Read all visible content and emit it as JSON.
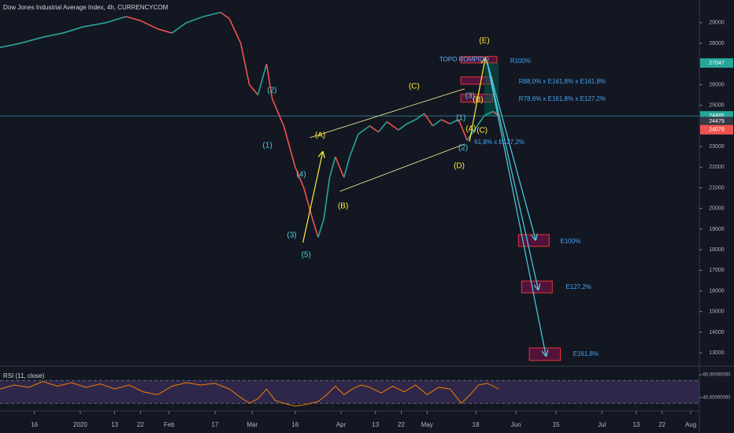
{
  "chart_data": {
    "type": "line",
    "title": "Dow Jones Industrial Average Index, 4h, CURRENCYCOM",
    "xlim": [
      -27,
      217
    ],
    "ylim": [
      12360,
      30100
    ],
    "yticks": [
      29000,
      28000,
      26000,
      25000,
      23000,
      22000,
      21000,
      20000,
      19000,
      18000,
      17000,
      16000,
      15000,
      14000,
      13000
    ],
    "xticks": [
      {
        "value": -15,
        "label": "16"
      },
      {
        "value": 1,
        "label": "2020"
      },
      {
        "value": 13,
        "label": "13"
      },
      {
        "value": 22,
        "label": "22"
      },
      {
        "value": 32,
        "label": "Feb"
      },
      {
        "value": 48,
        "label": "17"
      },
      {
        "value": 61,
        "label": "Mar"
      },
      {
        "value": 76,
        "label": "16"
      },
      {
        "value": 92,
        "label": "Apr"
      },
      {
        "value": 104,
        "label": "13"
      },
      {
        "value": 113,
        "label": "22"
      },
      {
        "value": 122,
        "label": "May"
      },
      {
        "value": 139,
        "label": "18"
      },
      {
        "value": 153,
        "label": "Jun"
      },
      {
        "value": 167,
        "label": "15"
      },
      {
        "value": 183,
        "label": "Jul"
      },
      {
        "value": 195,
        "label": "13"
      },
      {
        "value": 204,
        "label": "22"
      },
      {
        "value": 214,
        "label": "Aug"
      }
    ],
    "up_color": "#26a69a",
    "down_color": "#ef5350",
    "x": [
      -27,
      -20,
      -12,
      -5,
      2,
      10,
      17,
      22,
      28,
      33,
      38,
      44,
      50,
      53,
      57,
      60,
      63,
      66,
      68,
      72,
      76,
      79,
      82,
      84,
      86,
      88,
      90,
      93,
      95,
      98,
      102,
      105,
      108,
      112,
      115,
      118,
      121,
      124,
      127,
      130,
      133,
      136,
      139,
      142,
      145,
      147
    ],
    "values": [
      27800,
      28000,
      28300,
      28500,
      28800,
      29000,
      29300,
      29100,
      28700,
      28500,
      29000,
      29300,
      29500,
      29200,
      28000,
      26000,
      25500,
      27000,
      25300,
      24000,
      22000,
      21000,
      19500,
      18600,
      19500,
      21500,
      22500,
      21500,
      22500,
      23600,
      24000,
      23700,
      24200,
      23800,
      24100,
      24300,
      24600,
      24000,
      24300,
      24100,
      24300,
      23300,
      23900,
      24500,
      24700,
      24500
    ],
    "last_price": {
      "value": 24485,
      "color": "#4dd0e1"
    },
    "price_labels": [
      {
        "value": 27047,
        "color": "#26a69a"
      },
      {
        "value": 24485,
        "color": "#26a69a"
      },
      {
        "value": 24479,
        "color": "#363a45"
      },
      {
        "value": 24079,
        "color": "#ef5350"
      }
    ],
    "zones": [
      {
        "x": [
          133.8,
          146.4
        ],
        "y": [
          27050,
          27360
        ],
        "color": "#880e4f"
      },
      {
        "x": [
          133.8,
          144.8
        ],
        "y": [
          26020,
          26370
        ],
        "color": "#880e4f"
      },
      {
        "x": [
          133.8,
          144.8
        ],
        "y": [
          25150,
          25530
        ],
        "color": "#880e4f"
      },
      {
        "x": [
          142,
          147
        ],
        "y": [
          24485,
          27047
        ],
        "color": "#00695c"
      },
      {
        "x": [
          153.9,
          164.6
        ],
        "y": [
          18160,
          18730
        ],
        "color": "#880e4f"
      },
      {
        "x": [
          155,
          165.7
        ],
        "y": [
          15910,
          16480
        ],
        "color": "#880e4f"
      },
      {
        "x": [
          157.7,
          168.5
        ],
        "y": [
          12630,
          13240
        ],
        "color": "#880e4f"
      }
    ],
    "lines": [
      {
        "x": [
          81.1,
          135.1
        ],
        "y": [
          23430,
          25800
        ],
        "color": "#fff59d",
        "arrow": false
      },
      {
        "x": [
          91.6,
          135.1
        ],
        "y": [
          20830,
          23120
        ],
        "color": "#fff59d",
        "arrow": false
      },
      {
        "x": [
          78.7,
          85.6
        ],
        "y": [
          18350,
          22740
        ],
        "color": "#ffeb3b",
        "arrow": true
      },
      {
        "x": [
          136.8,
          142.3
        ],
        "y": [
          23240,
          27280
        ],
        "color": "#ffeb3b",
        "arrow": true
      },
      {
        "x": [
          142.9,
          159.9
        ],
        "y": [
          27130,
          18470
        ],
        "color": "#4dd0e1",
        "arrow": true
      },
      {
        "x": [
          142.9,
          160.8
        ],
        "y": [
          27130,
          16060
        ],
        "color": "#4dd0e1",
        "arrow": true
      },
      {
        "x": [
          142.9,
          163.5
        ],
        "y": [
          27130,
          12850
        ],
        "color": "#4dd0e1",
        "arrow": true
      }
    ],
    "annotations": [
      {
        "text": "(E)",
        "x": 142,
        "y": 28120,
        "color": "#ffeb3b"
      },
      {
        "text": "TOPO ROMPIDO",
        "x": 126.3,
        "y": 27206,
        "color": "#64b5f6"
      },
      {
        "text": "R100%",
        "x": 151,
        "y": 27130,
        "color": "#42a5f5"
      },
      {
        "text": "R88,0% x E161,8% x E161,8%",
        "x": 154,
        "y": 26140,
        "color": "#42a5f5"
      },
      {
        "text": "R78,6% x E161,8% x E127,2%",
        "x": 154,
        "y": 25300,
        "color": "#42a5f5"
      },
      {
        "text": "(C)",
        "x": 117.5,
        "y": 25900,
        "color": "#ffeb3b"
      },
      {
        "text": "(2)",
        "x": 67.9,
        "y": 25720,
        "color": "#4dd0e1"
      },
      {
        "text": "(1)",
        "x": 66.3,
        "y": 23050,
        "color": "#4dd0e1"
      },
      {
        "text": "(A)",
        "x": 84.7,
        "y": 23540,
        "color": "#ffeb3b"
      },
      {
        "text": "(4)",
        "x": 78.1,
        "y": 21630,
        "color": "#4dd0e1"
      },
      {
        "text": "(3)",
        "x": 74.8,
        "y": 18690,
        "color": "#4dd0e1"
      },
      {
        "text": "(5)",
        "x": 79.8,
        "y": 17740,
        "color": "#4dd0e1"
      },
      {
        "text": "(B)",
        "x": 92.7,
        "y": 20110,
        "color": "#ffeb3b"
      },
      {
        "text": "(D)",
        "x": 133.2,
        "y": 22050,
        "color": "#ffeb3b"
      },
      {
        "text": "(1)",
        "x": 133.8,
        "y": 24380,
        "color": "#4dd0e1"
      },
      {
        "text": "(2)",
        "x": 134.6,
        "y": 22930,
        "color": "#4dd0e1"
      },
      {
        "text": "61,8% x E127,2%",
        "x": 138.5,
        "y": 23200,
        "color": "#42a5f5"
      },
      {
        "text": "(A)",
        "x": 137.3,
        "y": 23850,
        "color": "#ffeb3b"
      },
      {
        "text": "(C)",
        "x": 141.2,
        "y": 23770,
        "color": "#ffeb3b"
      },
      {
        "text": "(B)",
        "x": 139.8,
        "y": 25260,
        "color": "#ffeb3b"
      },
      {
        "text": "(3)",
        "x": 137,
        "y": 25450,
        "color": "#4dd0e1"
      },
      {
        "text": "E100%",
        "x": 168.5,
        "y": 18390,
        "color": "#42a5f5"
      },
      {
        "text": "E127,2%",
        "x": 170.4,
        "y": 16180,
        "color": "#42a5f5"
      },
      {
        "text": "E161,8%",
        "x": 172.9,
        "y": 12930,
        "color": "#42a5f5"
      }
    ],
    "rsi": {
      "label": "RSI (11, close)",
      "color": "#f57c00",
      "ylim": [
        16.5,
        93.8
      ],
      "yticks": [
        {
          "value": 80,
          "label": "80.00000000"
        },
        {
          "value": 40,
          "label": "40.00000000"
        }
      ],
      "bands": [
        30,
        70
      ],
      "band_color": "#7e57c2",
      "x": [
        -27,
        -22,
        -17,
        -12,
        -7,
        -2,
        3,
        8,
        13,
        18,
        23,
        28,
        33,
        38,
        43,
        48,
        53,
        57,
        60,
        63,
        66,
        69,
        72,
        76,
        80,
        84,
        87,
        90,
        93,
        96,
        99,
        102,
        106,
        110,
        114,
        118,
        122,
        126,
        130,
        134,
        137,
        140,
        143,
        147
      ],
      "values": [
        55,
        62,
        58,
        68,
        60,
        66,
        58,
        64,
        55,
        62,
        50,
        45,
        60,
        66,
        62,
        65,
        55,
        40,
        30,
        38,
        55,
        35,
        30,
        25,
        28,
        33,
        45,
        60,
        45,
        55,
        62,
        58,
        48,
        60,
        50,
        62,
        45,
        58,
        55,
        30,
        45,
        62,
        65,
        55
      ]
    }
  }
}
